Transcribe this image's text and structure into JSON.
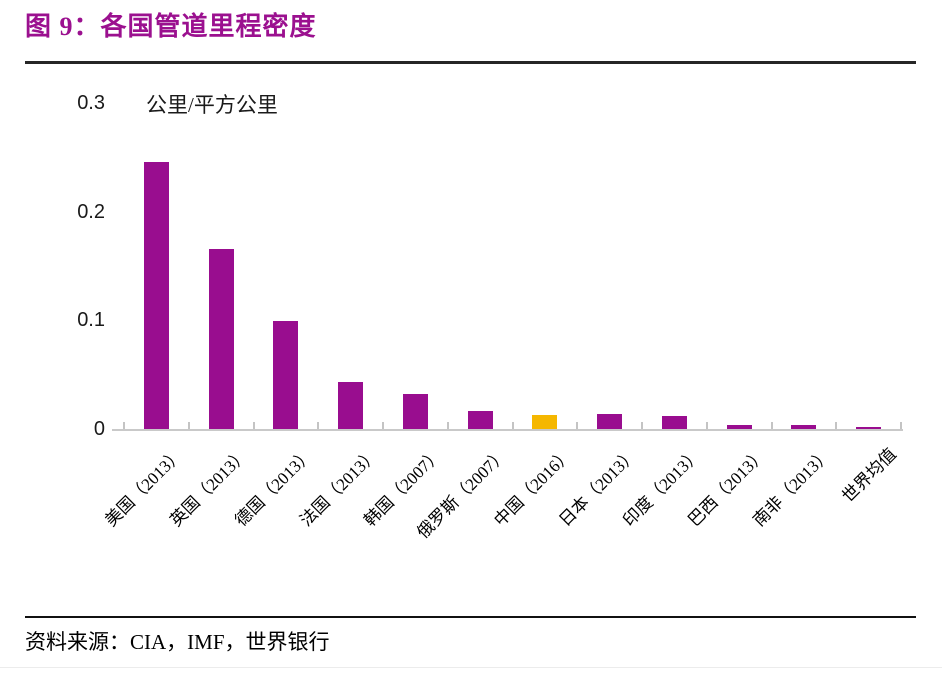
{
  "header": {
    "title": "图 9：各国管道里程密度"
  },
  "colors": {
    "accent_title": "#9B108F",
    "bar_default": "#990D8F",
    "bar_highlight": "#F5B700",
    "axis_line": "#C9C9C9",
    "rule_dark": "#262626"
  },
  "chart_data": {
    "type": "bar",
    "title": "图 9：各国管道里程密度",
    "unit_label": "公里/平方公里",
    "categories": [
      "美国（2013）",
      "英国（2013）",
      "德国（2013）",
      "法国（2013）",
      "韩国（2007）",
      "俄罗斯（2007）",
      "中国（2016）",
      "日本（2013）",
      "印度（2013）",
      "巴西（2013）",
      "南非（2013）",
      "世界均值"
    ],
    "values": [
      0.246,
      0.166,
      0.099,
      0.043,
      0.032,
      0.017,
      0.013,
      0.014,
      0.012,
      0.004,
      0.004,
      0.002
    ],
    "highlight_index": 6,
    "bar_color": "#990D8F",
    "highlight_color": "#F5B700",
    "xlabel": "",
    "ylabel": "公里/平方公里",
    "ylim": [
      0,
      0.3
    ],
    "yticks": [
      {
        "label": "0.3",
        "value": 0.3
      },
      {
        "label": "0.2",
        "value": 0.2
      },
      {
        "label": "0.1",
        "value": 0.1
      },
      {
        "label": "0",
        "value": 0
      }
    ],
    "grid": false,
    "legend": false,
    "x_label_rotation_deg": 45
  },
  "footer": {
    "source_label": "资料来源：",
    "source_text": "CIA，IMF，世界银行"
  }
}
